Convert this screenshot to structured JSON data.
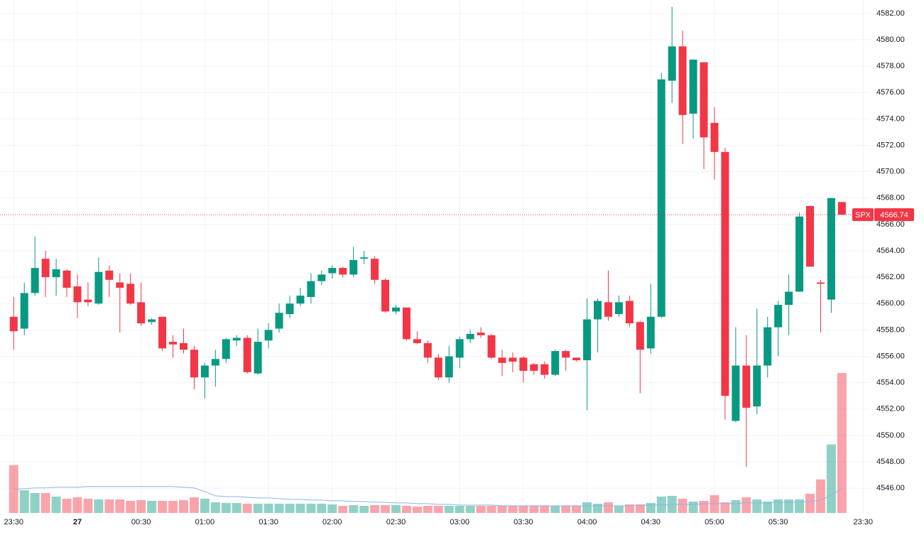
{
  "chart_data": {
    "type": "candlestick",
    "symbol": "SPX",
    "up_color": "#089981",
    "down_color": "#f23645",
    "volume_up_color": "rgba(8,153,129,0.45)",
    "volume_down_color": "rgba(242,54,69,0.45)",
    "volume_ma_color": "#8fb4f0",
    "grid": true,
    "xlim": [
      -1.29,
      80.65
    ],
    "ylim": [
      4544.12,
      4583.02
    ],
    "xticks": [
      {
        "value": 0,
        "label": "23:30"
      },
      {
        "value": 6,
        "label": "27"
      },
      {
        "value": 12,
        "label": "00:30"
      },
      {
        "value": 18,
        "label": "01:00"
      },
      {
        "value": 24,
        "label": "01:30"
      },
      {
        "value": 30,
        "label": "02:00"
      },
      {
        "value": 36,
        "label": "02:30"
      },
      {
        "value": 42,
        "label": "03:00"
      },
      {
        "value": 48,
        "label": "03:30"
      },
      {
        "value": 54,
        "label": "04:00"
      },
      {
        "value": 60,
        "label": "04:30"
      },
      {
        "value": 66,
        "label": "05:00"
      },
      {
        "value": 72,
        "label": "05:30"
      },
      {
        "value": 80,
        "label": "23:30"
      }
    ],
    "yticks": [
      {
        "value": 4546,
        "label": "4546.00"
      },
      {
        "value": 4548,
        "label": "4548.00"
      },
      {
        "value": 4550,
        "label": "4550.00"
      },
      {
        "value": 4552,
        "label": "4552.00"
      },
      {
        "value": 4554,
        "label": "4554.00"
      },
      {
        "value": 4556,
        "label": "4556.00"
      },
      {
        "value": 4558,
        "label": "4558.00"
      },
      {
        "value": 4560,
        "label": "4560.00"
      },
      {
        "value": 4562,
        "label": "4562.00"
      },
      {
        "value": 4564,
        "label": "4564.00"
      },
      {
        "value": 4566,
        "label": "4566.00"
      },
      {
        "value": 4568,
        "label": "4568.00"
      },
      {
        "value": 4570,
        "label": "4570.00"
      },
      {
        "value": 4572,
        "label": "4572.00"
      },
      {
        "value": 4574,
        "label": "4574.00"
      },
      {
        "value": 4576,
        "label": "4576.00"
      },
      {
        "value": 4578,
        "label": "4578.00"
      },
      {
        "value": 4580,
        "label": "4580.00"
      },
      {
        "value": 4582,
        "label": "4582.00"
      }
    ],
    "last_price": {
      "value": 4566.74,
      "label": "4566.74"
    },
    "open": [
      4559.0,
      4558.1,
      4560.8,
      4563.4,
      4562.0,
      4562.5,
      4561.3,
      4560.3,
      4560.0,
      4562.5,
      4561.6,
      4561.5,
      4560.1,
      4558.6,
      4559.0,
      4557.1,
      4557.0,
      4556.5,
      4554.4,
      4555.3,
      4555.8,
      4557.2,
      4557.4,
      4554.7,
      4557.2,
      4558.1,
      4559.2,
      4560.0,
      4560.5,
      4561.7,
      4562.3,
      4562.7,
      4562.2,
      4563.4,
      4563.4,
      4561.8,
      4559.4,
      4559.7,
      4557.3,
      4557.0,
      4555.9,
      4554.4,
      4555.9,
      4557.3,
      4557.8,
      4557.6,
      4555.9,
      4555.9,
      4555.9,
      4555.4,
      4555.4,
      4554.6,
      4556.4,
      4555.9,
      4555.7,
      4558.8,
      4560.1,
      4559.2,
      4560.2,
      4558.6,
      4556.6,
      4559.0,
      4576.9,
      4579.5,
      4574.4,
      4578.3,
      4573.7,
      4571.5,
      4551.1,
      4555.3,
      4552.2,
      4555.3,
      4558.2,
      4559.9,
      4560.9,
      4567.4,
      4561.6,
      4560.3,
      4567.7
    ],
    "high": [
      4560.5,
      4561.6,
      4565.1,
      4564.0,
      4563.4,
      4562.6,
      4562.2,
      4561.6,
      4563.5,
      4562.9,
      4562.3,
      4562.3,
      4561.6,
      4558.9,
      4559.0,
      4557.6,
      4558.1,
      4556.8,
      4555.5,
      4556.5,
      4557.4,
      4557.6,
      4557.6,
      4558.1,
      4558.5,
      4560.0,
      4560.6,
      4561.2,
      4562.3,
      4562.5,
      4562.9,
      4562.8,
      4564.3,
      4564.0,
      4563.6,
      4561.9,
      4559.9,
      4559.7,
      4557.9,
      4557.2,
      4556.2,
      4556.8,
      4557.5,
      4558.0,
      4558.2,
      4557.7,
      4556.5,
      4556.3,
      4556.0,
      4555.5,
      4555.6,
      4556.5,
      4556.5,
      4555.9,
      4560.4,
      4560.4,
      4562.5,
      4560.6,
      4560.6,
      4558.7,
      4561.5,
      4577.5,
      4582.5,
      4580.7,
      4578.5,
      4578.3,
      4574.9,
      4571.8,
      4558.2,
      4557.6,
      4559.6,
      4559.0,
      4560.2,
      4562.2,
      4566.9,
      4567.4,
      4561.8,
      4568.0,
      4567.7
    ],
    "low": [
      4556.5,
      4557.6,
      4560.6,
      4560.5,
      4560.6,
      4560.5,
      4558.9,
      4559.8,
      4559.9,
      4560.5,
      4557.8,
      4559.9,
      4558.3,
      4558.4,
      4556.4,
      4555.9,
      4556.2,
      4553.5,
      4552.8,
      4553.7,
      4555.5,
      4556.8,
      4554.7,
      4554.6,
      4556.6,
      4557.8,
      4558.9,
      4559.8,
      4560.0,
      4561.4,
      4561.9,
      4562.0,
      4562.0,
      4563.0,
      4561.5,
      4559.3,
      4559.2,
      4557.2,
      4556.9,
      4555.5,
      4554.2,
      4554.0,
      4555.1,
      4557.0,
      4557.4,
      4555.8,
      4554.5,
      4554.8,
      4554.0,
      4554.6,
      4554.3,
      4554.5,
      4554.9,
      4555.6,
      4551.9,
      4556.3,
      4558.7,
      4559.0,
      4558.2,
      4553.2,
      4556.2,
      4558.9,
      4575.2,
      4572.1,
      4572.5,
      4570.2,
      4569.4,
      4551.2,
      4551.0,
      4547.6,
      4551.6,
      4554.4,
      4556.0,
      4557.6,
      4560.9,
      4562.8,
      4557.8,
      4559.3,
      4566.7
    ],
    "close": [
      4557.9,
      4560.8,
      4562.7,
      4562.0,
      4562.6,
      4561.2,
      4560.1,
      4560.1,
      4562.4,
      4561.8,
      4561.2,
      4560.0,
      4558.5,
      4558.8,
      4556.6,
      4556.9,
      4556.5,
      4554.4,
      4555.3,
      4555.8,
      4557.3,
      4557.4,
      4554.8,
      4557.1,
      4558.0,
      4559.3,
      4560.0,
      4560.6,
      4561.7,
      4562.2,
      4562.7,
      4562.2,
      4563.3,
      4563.5,
      4561.8,
      4559.4,
      4559.7,
      4557.3,
      4557.0,
      4555.9,
      4554.4,
      4556.0,
      4557.3,
      4557.7,
      4557.6,
      4555.9,
      4555.5,
      4555.6,
      4554.9,
      4554.9,
      4554.6,
      4556.4,
      4555.9,
      4555.7,
      4558.8,
      4560.2,
      4559.0,
      4560.1,
      4558.5,
      4556.5,
      4559.0,
      4577.0,
      4579.5,
      4574.3,
      4578.5,
      4572.6,
      4571.5,
      4553.0,
      4555.3,
      4552.1,
      4555.3,
      4558.2,
      4559.9,
      4560.9,
      4566.6,
      4562.8,
      4561.5,
      4568.0,
      4566.74
    ],
    "volume": [
      67,
      32,
      28,
      28,
      23,
      20,
      22,
      20,
      19,
      19,
      19,
      17,
      18,
      17,
      17,
      17,
      18,
      22,
      20,
      15,
      14,
      14,
      13,
      13,
      13,
      13,
      13,
      13,
      13,
      13,
      12,
      10,
      11,
      10,
      11,
      11,
      11,
      10,
      9,
      10,
      10,
      10,
      10,
      10,
      10,
      10,
      10,
      10,
      10,
      10,
      10,
      10,
      10,
      10,
      15,
      13,
      15,
      10,
      12,
      12,
      14,
      23,
      24,
      20,
      16,
      17,
      25,
      15,
      18,
      22,
      19,
      16,
      19,
      19,
      19,
      27,
      47,
      96,
      196
    ],
    "volume_ma": [
      33,
      34,
      35,
      35,
      36,
      36,
      36,
      37,
      37,
      37,
      37,
      37,
      37,
      37,
      37,
      37,
      36,
      35,
      30,
      24,
      23,
      23,
      22,
      21,
      21,
      20,
      19,
      19,
      18,
      18,
      17,
      17,
      16,
      16,
      15,
      15,
      14,
      14,
      13,
      13,
      12,
      12,
      11,
      11,
      11,
      11,
      10,
      10,
      10,
      10,
      10,
      10,
      10,
      10,
      10,
      10,
      10,
      10,
      10,
      11,
      11,
      11,
      12,
      12,
      12,
      13,
      13,
      13,
      13,
      14,
      14,
      14,
      15,
      15,
      15,
      16,
      18,
      25,
      34
    ]
  }
}
